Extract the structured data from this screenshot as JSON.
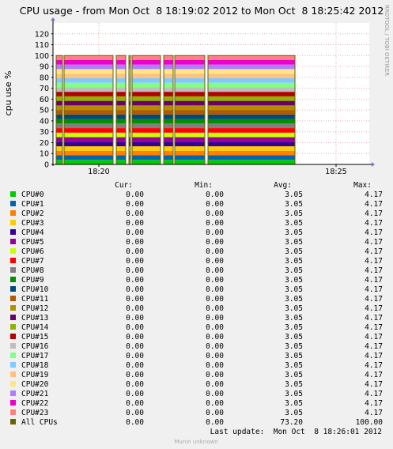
{
  "chart_data": {
    "type": "area",
    "title": "CPU usage - from Mon Oct  8 18:19:02 2012 to Mon Oct  8 18:25:42 2012",
    "ylabel": "cpu use %",
    "xlabel": "",
    "ylim": [
      0,
      130
    ],
    "yticks": [
      0,
      10,
      20,
      30,
      40,
      50,
      60,
      70,
      80,
      90,
      100,
      110,
      120
    ],
    "xticks": [
      "18:20",
      "18:25"
    ],
    "x_range": [
      "18:19:02",
      "18:25:42"
    ],
    "stacked": true,
    "grid": true,
    "watermark": "RRDTOOL / TOBI OETIKER",
    "columns": [
      "Cur:",
      "Min:",
      "Avg:",
      "Max:"
    ],
    "series": [
      {
        "name": "CPU#0",
        "color": "#00cc00",
        "cur": "0.00",
        "min": "0.00",
        "avg": "3.05",
        "max": "4.17"
      },
      {
        "name": "CPU#1",
        "color": "#0066b3",
        "cur": "0.00",
        "min": "0.00",
        "avg": "3.05",
        "max": "4.17"
      },
      {
        "name": "CPU#2",
        "color": "#ff8000",
        "cur": "0.00",
        "min": "0.00",
        "avg": "3.05",
        "max": "4.17"
      },
      {
        "name": "CPU#3",
        "color": "#ffcc00",
        "cur": "0.00",
        "min": "0.00",
        "avg": "3.05",
        "max": "4.17"
      },
      {
        "name": "CPU#4",
        "color": "#330099",
        "cur": "0.00",
        "min": "0.00",
        "avg": "3.05",
        "max": "4.17"
      },
      {
        "name": "CPU#5",
        "color": "#990099",
        "cur": "0.00",
        "min": "0.00",
        "avg": "3.05",
        "max": "4.17"
      },
      {
        "name": "CPU#6",
        "color": "#ccff00",
        "cur": "0.00",
        "min": "0.00",
        "avg": "3.05",
        "max": "4.17"
      },
      {
        "name": "CPU#7",
        "color": "#ff0000",
        "cur": "0.00",
        "min": "0.00",
        "avg": "3.05",
        "max": "4.17"
      },
      {
        "name": "CPU#8",
        "color": "#808080",
        "cur": "0.00",
        "min": "0.00",
        "avg": "3.05",
        "max": "4.17"
      },
      {
        "name": "CPU#9",
        "color": "#008f00",
        "cur": "0.00",
        "min": "0.00",
        "avg": "3.05",
        "max": "4.17"
      },
      {
        "name": "CPU#10",
        "color": "#00487d",
        "cur": "0.00",
        "min": "0.00",
        "avg": "3.05",
        "max": "4.17"
      },
      {
        "name": "CPU#11",
        "color": "#b35a00",
        "cur": "0.00",
        "min": "0.00",
        "avg": "3.05",
        "max": "4.17"
      },
      {
        "name": "CPU#12",
        "color": "#b38f00",
        "cur": "0.00",
        "min": "0.00",
        "avg": "3.05",
        "max": "4.17"
      },
      {
        "name": "CPU#13",
        "color": "#6b006b",
        "cur": "0.00",
        "min": "0.00",
        "avg": "3.05",
        "max": "4.17"
      },
      {
        "name": "CPU#14",
        "color": "#8fb300",
        "cur": "0.00",
        "min": "0.00",
        "avg": "3.05",
        "max": "4.17"
      },
      {
        "name": "CPU#15",
        "color": "#b30000",
        "cur": "0.00",
        "min": "0.00",
        "avg": "3.05",
        "max": "4.17"
      },
      {
        "name": "CPU#16",
        "color": "#bebebe",
        "cur": "0.00",
        "min": "0.00",
        "avg": "3.05",
        "max": "4.17"
      },
      {
        "name": "CPU#17",
        "color": "#80ff80",
        "cur": "0.00",
        "min": "0.00",
        "avg": "3.05",
        "max": "4.17"
      },
      {
        "name": "CPU#18",
        "color": "#80c9ff",
        "cur": "0.00",
        "min": "0.00",
        "avg": "3.05",
        "max": "4.17"
      },
      {
        "name": "CPU#19",
        "color": "#ffc080",
        "cur": "0.00",
        "min": "0.00",
        "avg": "3.05",
        "max": "4.17"
      },
      {
        "name": "CPU#20",
        "color": "#ffe680",
        "cur": "0.00",
        "min": "0.00",
        "avg": "3.05",
        "max": "4.17"
      },
      {
        "name": "CPU#21",
        "color": "#aa80ff",
        "cur": "0.00",
        "min": "0.00",
        "avg": "3.05",
        "max": "4.17"
      },
      {
        "name": "CPU#22",
        "color": "#ee00cc",
        "cur": "0.00",
        "min": "0.00",
        "avg": "3.05",
        "max": "4.17"
      },
      {
        "name": "CPU#23",
        "color": "#ff8080",
        "cur": "0.00",
        "min": "0.00",
        "avg": "3.05",
        "max": "4.17"
      }
    ],
    "total": {
      "name": "All CPUs",
      "color": "#666600",
      "cur": "0.00",
      "min": "0.00",
      "avg": "73.20",
      "max": "100.00"
    },
    "per_cpu_max": 4.17,
    "active_intervals": [
      [
        "18:19:06",
        "18:19:14"
      ],
      [
        "18:19:16",
        "18:20:18"
      ],
      [
        "18:20:22",
        "18:20:34"
      ],
      [
        "18:20:38",
        "18:20:40"
      ],
      [
        "18:20:42",
        "18:21:18"
      ],
      [
        "18:21:22",
        "18:21:34"
      ],
      [
        "18:21:36",
        "18:22:14"
      ],
      [
        "18:22:18",
        "18:24:08"
      ]
    ],
    "last_update": "Last update:  Mon Oct  8 18:26:01 2012",
    "footer": "Munin unknown"
  }
}
